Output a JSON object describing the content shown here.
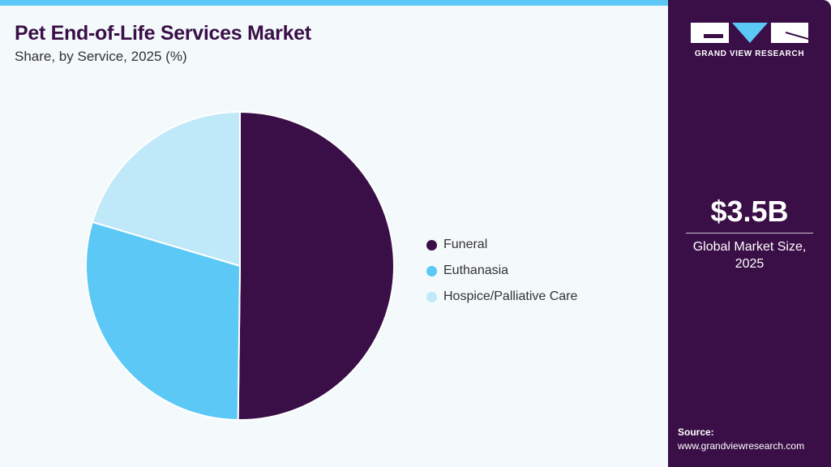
{
  "header": {
    "title": "Pet End-of-Life Services Market",
    "subtitle": "Share, by Service, 2025 (%)"
  },
  "sidebar": {
    "logo_text": "GRAND VIEW RESEARCH",
    "market_size": "$3.5B",
    "market_label_line1": "Global Market Size,",
    "market_label_line2": "2025",
    "source_label": "Source:",
    "source_url": "www.grandviewresearch.com"
  },
  "colors": {
    "accent": "#5bc8f5",
    "brand": "#3a0f47"
  },
  "chart_data": {
    "type": "pie",
    "title": "Pet End-of-Life Services Market",
    "subtitle": "Share, by Service, 2025 (%)",
    "legend_position": "right",
    "categories": [
      "Funeral",
      "Euthanasia",
      "Hospice/Palliative Care"
    ],
    "values": [
      50.2,
      29.4,
      20.4
    ],
    "colors": [
      "#3a0f47",
      "#5bc8f5",
      "#bfe9f9"
    ]
  }
}
